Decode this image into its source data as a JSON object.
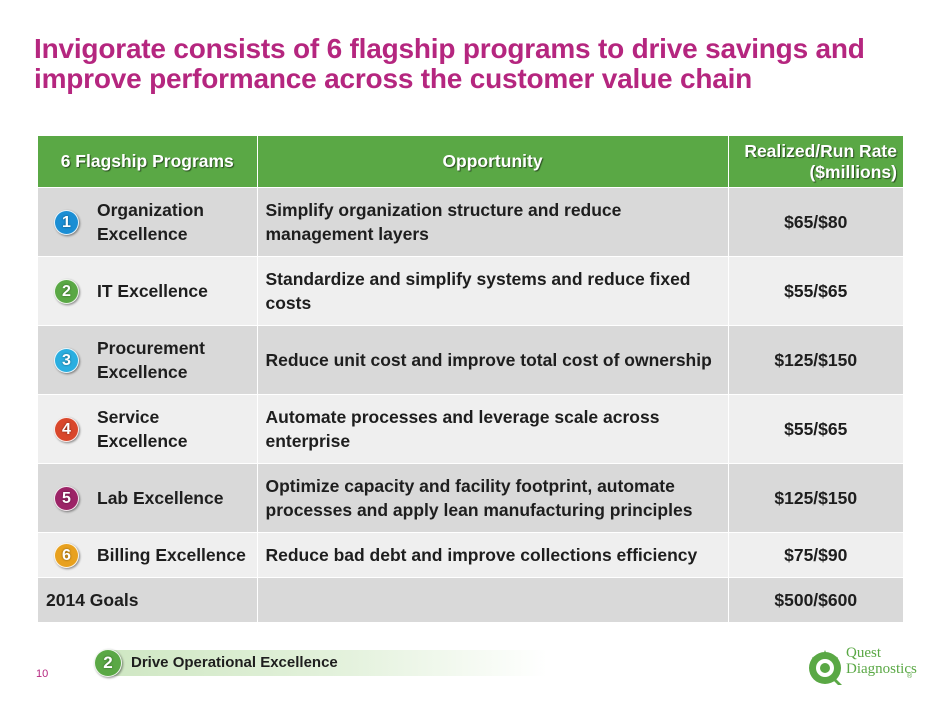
{
  "title": {
    "line1": "Invigorate consists of 6 flagship programs to drive savings and",
    "line2": "improve performance across the customer value chain"
  },
  "table": {
    "headers": [
      "6 Flagship Programs",
      "Opportunity",
      "Realized/Run Rate ($millions)"
    ],
    "rows": [
      {
        "number": "1",
        "program": "Organization Excellence",
        "opportunity": "Simplify organization structure and reduce management layers",
        "value": "$65/$80",
        "badge_color": "#1b8ed4"
      },
      {
        "number": "2",
        "program": "IT Excellence",
        "opportunity": "Standardize and simplify systems and reduce fixed costs",
        "value": "$55/$65",
        "badge_color": "#5aa845"
      },
      {
        "number": "3",
        "program": "Procurement Excellence",
        "opportunity": "Reduce unit cost and improve total cost of ownership",
        "value": "$125/$150",
        "badge_color": "#2aaee0"
      },
      {
        "number": "4",
        "program": "Service Excellence",
        "opportunity": "Automate processes and leverage scale across enterprise",
        "value": "$55/$65",
        "badge_color": "#d9472b"
      },
      {
        "number": "5",
        "program": "Lab Excellence",
        "opportunity": "Optimize capacity and facility footprint, automate processes and apply lean manufacturing principles",
        "value": "$125/$150",
        "badge_color": "#9c2467"
      },
      {
        "number": "6",
        "program": "Billing Excellence",
        "opportunity": "Reduce bad debt and improve collections efficiency",
        "value": "$75/$90",
        "badge_color": "#e8a11e"
      }
    ],
    "total": {
      "label": "2014 Goals",
      "value": "$500/$600"
    }
  },
  "footer": {
    "page_number": "10",
    "badge_number": "2",
    "badge_color": "#5aa845",
    "label": "Drive Operational Excellence"
  },
  "logo": {
    "line1": "Quest",
    "line2": "Diagnostics",
    "mark": "®"
  },
  "colors": {
    "title": "#b5267f",
    "header_green": "#5aa845",
    "row_dark": "#d9d9d9",
    "row_light": "#efefef"
  }
}
